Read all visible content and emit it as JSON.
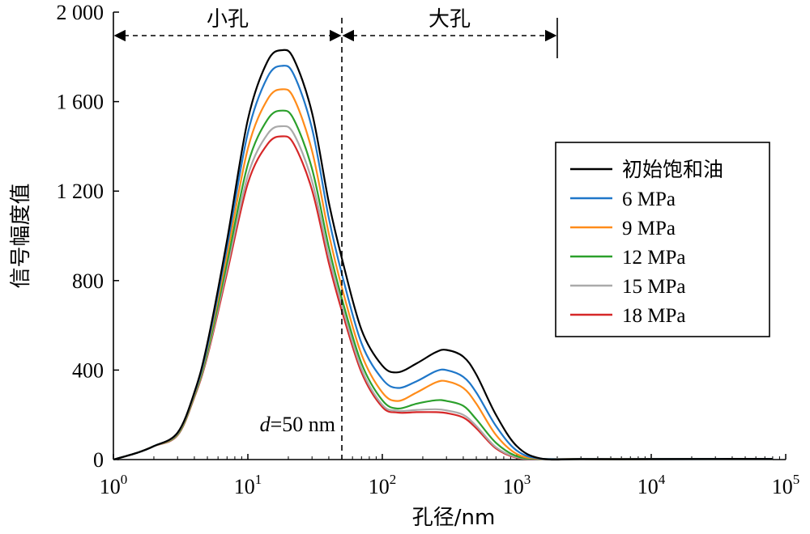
{
  "chart_data": {
    "type": "line",
    "xlabel": "孔径/nm",
    "ylabel": "信号幅度值",
    "xscale": "log",
    "xlim": [
      1,
      100000
    ],
    "ylim": [
      0,
      2000
    ],
    "x_ticks": [
      {
        "base": "10",
        "exp": "0"
      },
      {
        "base": "10",
        "exp": "1"
      },
      {
        "base": "10",
        "exp": "2"
      },
      {
        "base": "10",
        "exp": "3"
      },
      {
        "base": "10",
        "exp": "4"
      },
      {
        "base": "10",
        "exp": "5"
      }
    ],
    "y_ticks": [
      "0",
      "400",
      "800",
      "1 200",
      "1 600",
      "2 000"
    ],
    "legend_position": "right",
    "regions": {
      "small": "小孔",
      "large": "大孔",
      "divider_x": 50,
      "arrow_end_x": 2000
    },
    "annotation": {
      "italic": "d",
      "text": "=50 nm"
    },
    "series": [
      {
        "name": "初始饱和油",
        "color": "#000000",
        "x": [
          1,
          1.5,
          2,
          3,
          4,
          5,
          7,
          10,
          14,
          18,
          22,
          30,
          40,
          50,
          70,
          100,
          130,
          180,
          250,
          300,
          400,
          500,
          700,
          1000,
          1500,
          3000,
          10000,
          30000,
          80000
        ],
        "y": [
          0,
          30,
          60,
          120,
          300,
          520,
          980,
          1520,
          1780,
          1830,
          1790,
          1550,
          1150,
          900,
          580,
          420,
          390,
          430,
          480,
          490,
          460,
          380,
          200,
          60,
          5,
          2,
          2,
          3,
          3
        ]
      },
      {
        "name": "6 MPa",
        "color": "#1f77c9",
        "x": [
          1,
          1.5,
          2,
          3,
          4,
          5,
          7,
          10,
          14,
          18,
          22,
          30,
          40,
          50,
          70,
          100,
          130,
          180,
          250,
          300,
          400,
          500,
          700,
          1000,
          1500,
          3000,
          10000,
          30000,
          80000
        ],
        "y": [
          0,
          30,
          60,
          118,
          295,
          505,
          950,
          1460,
          1710,
          1760,
          1720,
          1480,
          1080,
          830,
          520,
          360,
          320,
          350,
          395,
          400,
          370,
          300,
          150,
          40,
          4,
          2,
          2,
          3,
          3
        ]
      },
      {
        "name": "9 MPa",
        "color": "#ff8c1a",
        "x": [
          1,
          1.5,
          2,
          3,
          4,
          5,
          7,
          10,
          14,
          18,
          22,
          30,
          40,
          50,
          70,
          100,
          130,
          180,
          250,
          300,
          400,
          500,
          700,
          1000,
          1500,
          3000,
          10000,
          30000,
          80000
        ],
        "y": [
          0,
          30,
          60,
          115,
          290,
          495,
          915,
          1390,
          1610,
          1655,
          1615,
          1380,
          1010,
          770,
          470,
          300,
          262,
          300,
          345,
          350,
          320,
          250,
          110,
          25,
          3,
          2,
          2,
          3,
          3
        ]
      },
      {
        "name": "12 MPa",
        "color": "#2ca02c",
        "x": [
          1,
          1.5,
          2,
          3,
          4,
          5,
          7,
          10,
          14,
          18,
          22,
          30,
          40,
          50,
          70,
          100,
          130,
          180,
          250,
          300,
          400,
          500,
          700,
          1000,
          1500,
          3000,
          10000,
          30000,
          80000
        ],
        "y": [
          0,
          30,
          60,
          112,
          285,
          480,
          880,
          1320,
          1520,
          1560,
          1520,
          1300,
          950,
          720,
          430,
          265,
          228,
          250,
          265,
          262,
          240,
          180,
          75,
          15,
          3,
          2,
          2,
          3,
          3
        ]
      },
      {
        "name": "15 MPa",
        "color": "#aaaaaa",
        "x": [
          1,
          1.5,
          2,
          3,
          4,
          5,
          7,
          10,
          14,
          18,
          22,
          30,
          40,
          50,
          70,
          100,
          130,
          180,
          250,
          300,
          400,
          500,
          700,
          1000,
          1500,
          3000,
          10000,
          30000,
          80000
        ],
        "y": [
          0,
          30,
          60,
          110,
          282,
          470,
          855,
          1270,
          1455,
          1490,
          1455,
          1245,
          910,
          690,
          405,
          245,
          218,
          222,
          225,
          220,
          200,
          150,
          55,
          10,
          3,
          2,
          2,
          3,
          3
        ]
      },
      {
        "name": "18 MPa",
        "color": "#d62728",
        "x": [
          1,
          1.5,
          2,
          3,
          4,
          5,
          7,
          10,
          14,
          18,
          22,
          30,
          40,
          50,
          70,
          100,
          130,
          180,
          250,
          300,
          400,
          500,
          700,
          1000,
          1500,
          3000,
          10000,
          30000,
          80000
        ],
        "y": [
          0,
          30,
          60,
          108,
          278,
          462,
          835,
          1235,
          1410,
          1445,
          1410,
          1205,
          880,
          665,
          390,
          235,
          210,
          212,
          212,
          208,
          188,
          140,
          50,
          8,
          3,
          2,
          2,
          3,
          3
        ]
      }
    ]
  }
}
